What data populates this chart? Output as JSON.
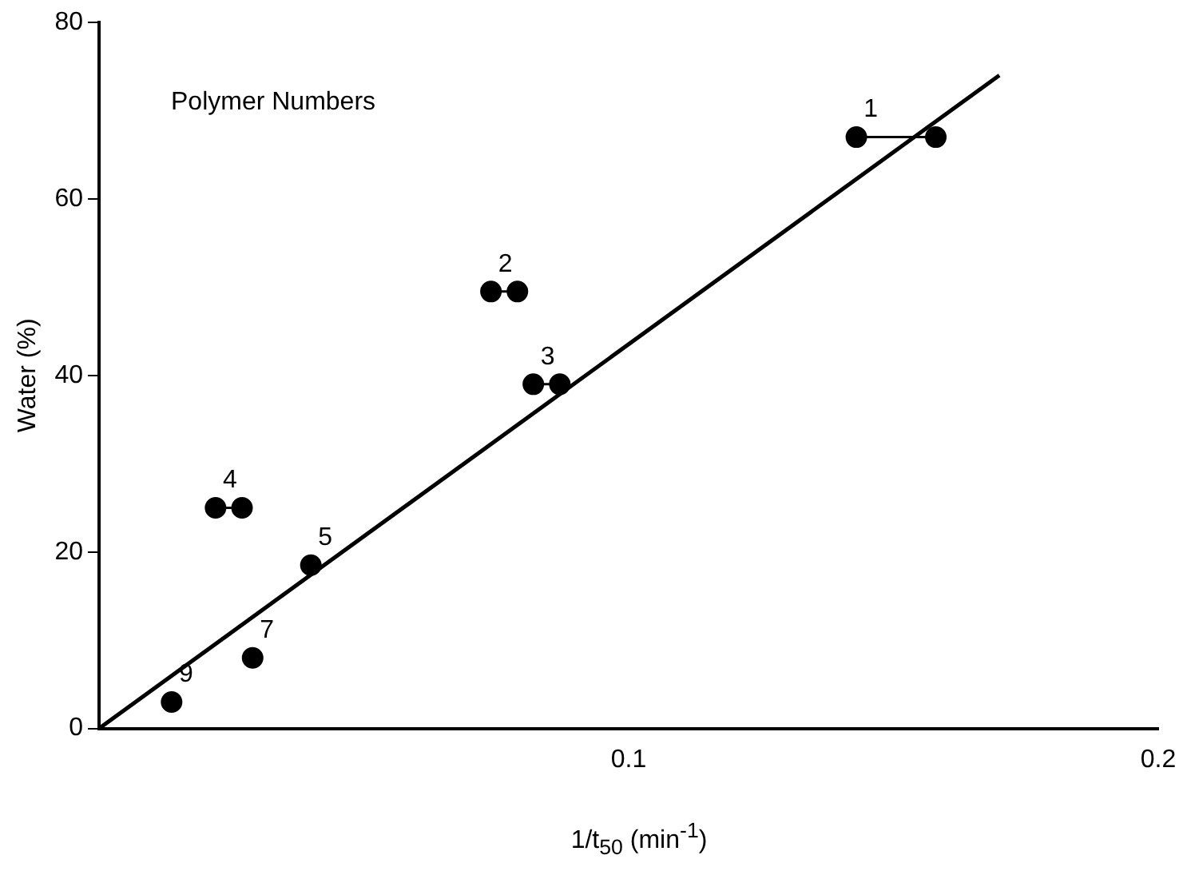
{
  "chart_data": {
    "type": "scatter",
    "xlabel": "1/t$_{50}$ (min$^{-1}$)",
    "ylabel": "Water (%)",
    "xlim": [
      0,
      0.2
    ],
    "ylim": [
      0,
      80
    ],
    "xticks": [
      {
        "value": 0,
        "label": null
      },
      0.1,
      0.2
    ],
    "yticks": [
      0,
      20,
      40,
      60,
      80
    ],
    "grid": false,
    "legend": false,
    "marker": "circle",
    "series": [
      {
        "type": "line",
        "color": "#000000",
        "x": [
          0.143,
          0.158
        ],
        "values": [
          67,
          67
        ]
      },
      {
        "type": "line",
        "color": "#000000",
        "x": [
          0.074,
          0.079
        ],
        "values": [
          49.5,
          49.5
        ]
      },
      {
        "type": "line",
        "color": "#000000",
        "x": [
          0.082,
          0.087
        ],
        "values": [
          39,
          39
        ]
      },
      {
        "type": "line",
        "color": "#000000",
        "x": [
          0.022,
          0.027
        ],
        "values": [
          25,
          25
        ]
      },
      {
        "color": "#000000",
        "x": [
          0.04,
          0.029,
          0.0137
        ],
        "values": [
          18.5,
          8,
          3
        ]
      },
      {
        "type": "line",
        "color": "#000000",
        "marker": "none",
        "x": [
          0,
          0.17
        ],
        "values": [
          0,
          74
        ]
      }
    ],
    "annotations": [
      "Polymer Numbers",
      {
        "text": "1",
        "x": 0.143,
        "y": 67
      },
      {
        "text": "2",
        "x": 0.074,
        "y": 49.5
      },
      {
        "text": "3",
        "x": 0.082,
        "y": 39
      },
      {
        "text": "4",
        "x": 0.022,
        "y": 25
      },
      {
        "text": "5",
        "x": 0.04,
        "y": 18.5
      },
      {
        "text": "7",
        "x": 0.029,
        "y": 8
      },
      {
        "text": "9",
        "x": 0.0137,
        "y": 3
      }
    ]
  }
}
